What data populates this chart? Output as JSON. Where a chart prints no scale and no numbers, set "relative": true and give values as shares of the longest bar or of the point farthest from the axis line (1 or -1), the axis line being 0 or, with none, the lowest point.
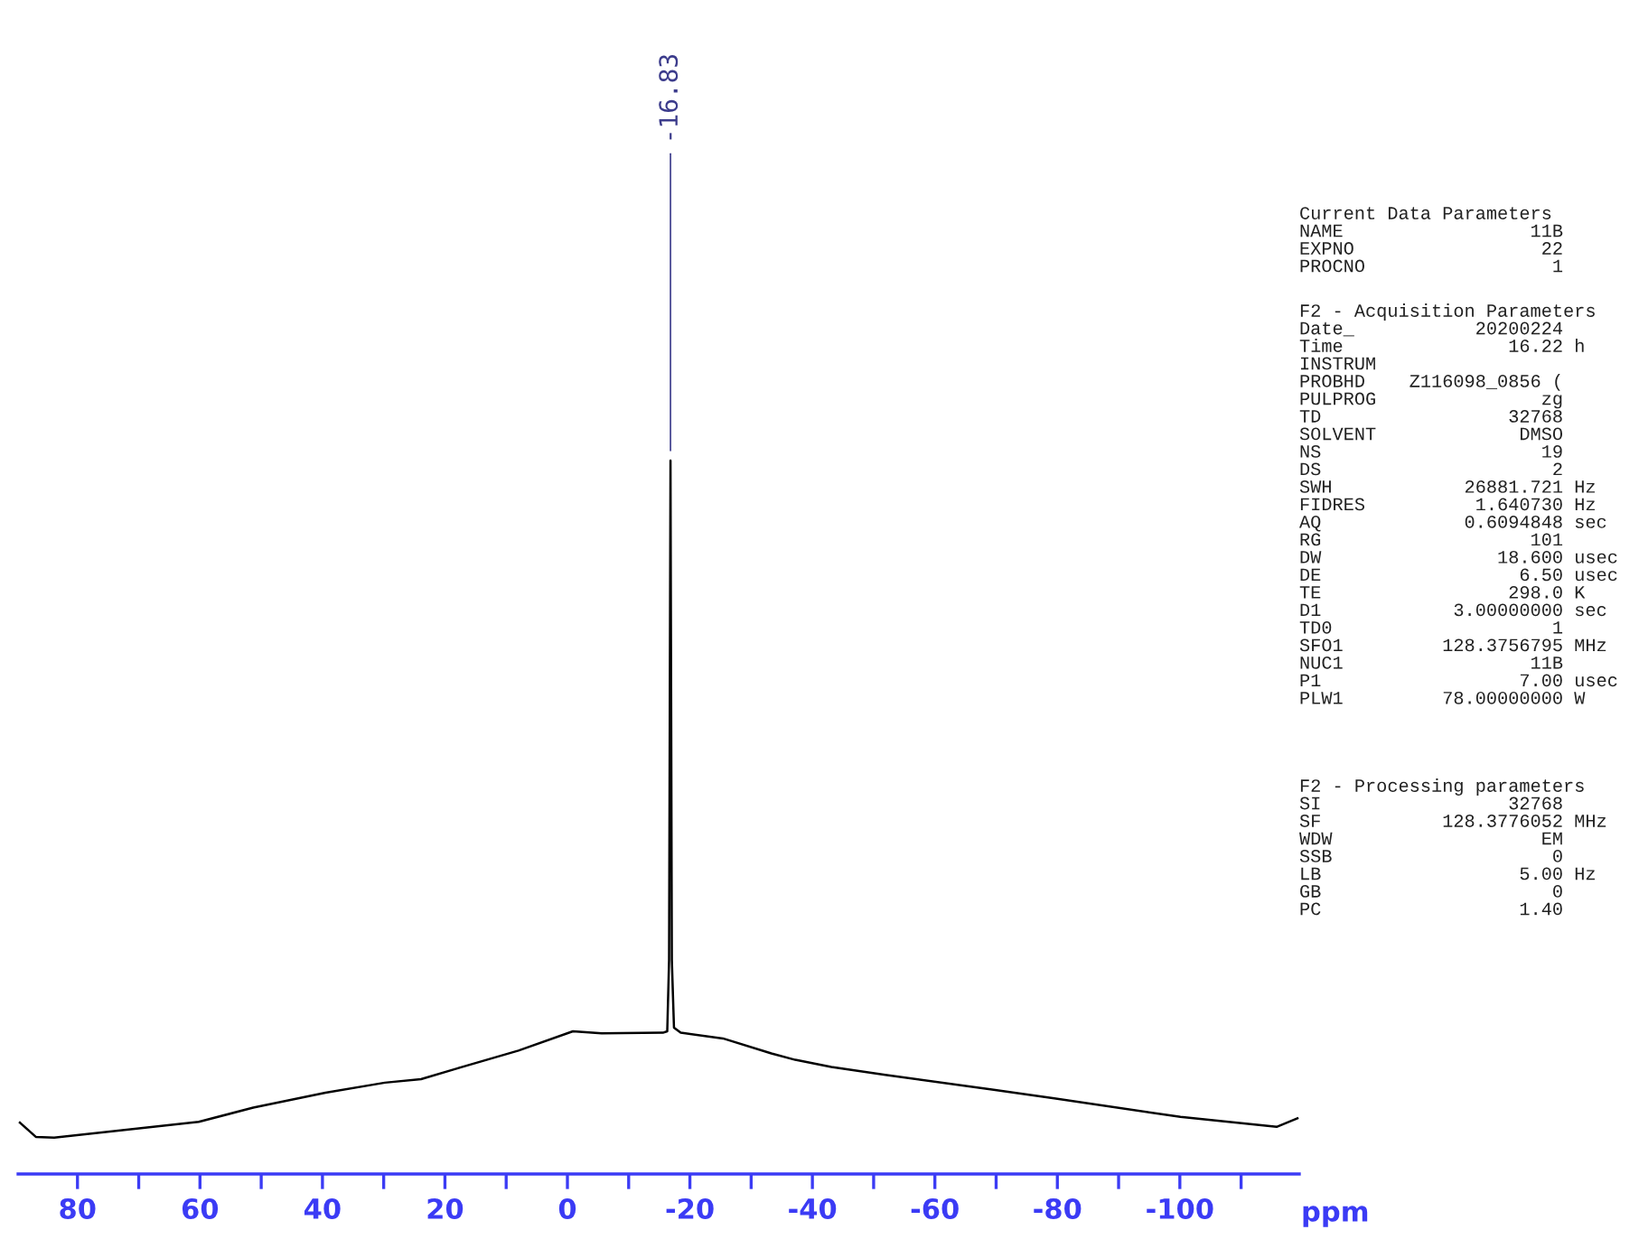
{
  "chart_data": {
    "type": "line",
    "relative": true,
    "xlabel": "ppm",
    "tick_labels": "x",
    "grid": false,
    "legend": false,
    "marker": "none",
    "line_style": "solid",
    "xlim": [
      89.7,
      -119.5
    ],
    "xticks": [
      80,
      {
        "value": 70,
        "label": null
      },
      60,
      {
        "value": 50,
        "label": null
      },
      40,
      {
        "value": 30,
        "label": null
      },
      20,
      {
        "value": 10,
        "label": null
      },
      0,
      {
        "value": -10,
        "label": null
      },
      -20,
      {
        "value": -30,
        "label": null
      },
      -40,
      {
        "value": -50,
        "label": null
      },
      -60,
      {
        "value": -70,
        "label": null
      },
      -80,
      {
        "value": -90,
        "label": null
      },
      -100,
      {
        "value": -110,
        "label": null
      }
    ],
    "series": [
      {
        "color": "#000000",
        "x": [
          89.4,
          86.8,
          83.8,
          73.0,
          60.2,
          51.3,
          39.5,
          29.8,
          23.9,
          18.0,
          8.0,
          -0.9,
          -5.6,
          -15.6,
          -16.3,
          -16.6,
          -16.83,
          -17.05,
          -17.4,
          -18.5,
          -25.4,
          -33.3,
          -37.2,
          -43.1,
          -51.9,
          -69.6,
          -79.5,
          -100.1,
          -115.8,
          -119.2
        ],
        "values": [
          0.072,
          0.052,
          0.051,
          0.061,
          0.073,
          0.093,
          0.114,
          0.128,
          0.133,
          0.148,
          0.173,
          0.2,
          0.197,
          0.198,
          0.2,
          0.3,
          1.0,
          0.3,
          0.205,
          0.198,
          0.19,
          0.169,
          0.16,
          0.15,
          0.139,
          0.118,
          0.106,
          0.08,
          0.066,
          0.078
        ]
      }
    ],
    "annotations": [
      {
        "text": "-16.83",
        "x": -16.83,
        "y": 1.0
      },
      "Current Data Parameters\nNAME                 11B\nEXPNO                 22\nPROCNO                 1",
      "F2 - Acquisition Parameters\nDate_           20200224\nTime               16.22 h\nINSTRUM\nPROBHD    Z116098_0856 (\nPULPROG               zg\nTD                 32768\nSOLVENT             DMSO\nNS                    19\nDS                     2\nSWH            26881.721 Hz\nFIDRES          1.640730 Hz\nAQ             0.6094848 sec\nRG                   101\nDW                18.600 usec\nDE                  6.50 usec\nTE                 298.0 K\nD1            3.00000000 sec\nTD0                    1\nSFO1         128.3756795 MHz\nNUC1                 11B\nP1                  7.00 usec\nPLW1         78.00000000 W",
      "F2 - Processing parameters\nSI                 32768\nSF           128.3776052 MHz\nWDW                   EM\nSSB                    0\nLB                  5.00 Hz\nGB                     0\nPC                  1.40"
    ]
  }
}
